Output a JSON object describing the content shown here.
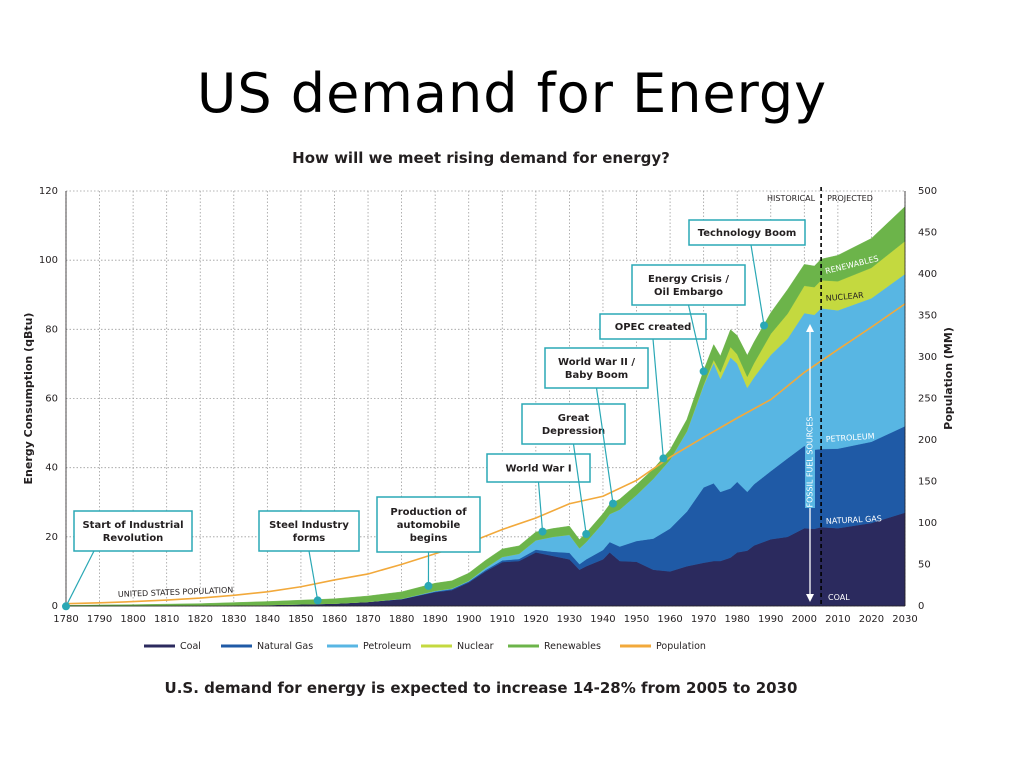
{
  "slide": {
    "title": "US demand for Energy",
    "subtitle": "How will we meet rising demand for energy?",
    "caption": "U.S. demand for energy is expected to increase 14-28% from 2005 to 2030"
  },
  "chart_data": {
    "type": "area",
    "stacked": true,
    "xlim": [
      1780,
      2030
    ],
    "ylim": [
      0,
      120
    ],
    "y2lim": [
      0,
      500
    ],
    "xlabel": "",
    "ylabel": "Energy Consumption (qBtu)",
    "y2label": "Population (MM)",
    "x_ticks": [
      "1780",
      "1790",
      "1800",
      "1810",
      "1820",
      "1830",
      "1840",
      "1850",
      "1860",
      "1870",
      "1880",
      "1890",
      "1900",
      "1910",
      "1920",
      "1930",
      "1940",
      "1950",
      "1960",
      "1970",
      "1980",
      "1990",
      "2000",
      "2010",
      "2020",
      "2030"
    ],
    "y_ticks": [
      "0",
      "20",
      "40",
      "60",
      "80",
      "100",
      "120"
    ],
    "y2_ticks": [
      "0",
      "50",
      "100",
      "150",
      "200",
      "250",
      "300",
      "350",
      "400",
      "450",
      "500"
    ],
    "grid": true,
    "legend_position": "bottom",
    "historical_label": "HISTORICAL",
    "projected_label": "PROJECTED",
    "projection_start": 2005,
    "fossil_label": "FOSSIL FUEL SOURCES",
    "population_label": "UNITED STATES POPULATION",
    "band_labels": {
      "coal": "COAL",
      "natural_gas": "NATURAL GAS",
      "petroleum": "PETROLEUM",
      "nuclear": "NUCLEAR",
      "renewables": "RENEWABLES"
    },
    "x": [
      1780,
      1800,
      1820,
      1840,
      1850,
      1860,
      1870,
      1880,
      1890,
      1895,
      1900,
      1905,
      1910,
      1915,
      1920,
      1925,
      1930,
      1933,
      1935,
      1940,
      1942,
      1945,
      1950,
      1955,
      1960,
      1965,
      1970,
      1973,
      1975,
      1978,
      1980,
      1983,
      1985,
      1990,
      1995,
      2000,
      2003,
      2005,
      2010,
      2020,
      2030
    ],
    "series": [
      {
        "name": "Coal",
        "key": "coal",
        "color": "#2b2a5e",
        "values": [
          0,
          0,
          0.1,
          0.3,
          0.5,
          0.7,
          1.2,
          2.0,
          4.0,
          4.6,
          6.8,
          10.0,
          12.7,
          13.0,
          15.5,
          14.5,
          13.5,
          10.5,
          11.5,
          13.5,
          15.5,
          13.0,
          12.8,
          10.5,
          10.0,
          11.5,
          12.5,
          13.0,
          13.0,
          14.0,
          15.5,
          16.0,
          17.5,
          19.3,
          20.0,
          22.5,
          22.3,
          22.8,
          22.5,
          24.0,
          27.0
        ]
      },
      {
        "name": "Natural Gas",
        "key": "natural_gas",
        "color": "#1f5aa6",
        "values": [
          0,
          0,
          0,
          0,
          0,
          0,
          0,
          0,
          0.2,
          0.3,
          0.3,
          0.4,
          0.5,
          0.6,
          0.8,
          1.2,
          1.9,
          1.6,
          2.0,
          2.7,
          3.0,
          4.2,
          6.0,
          9.0,
          12.4,
          15.8,
          21.8,
          22.5,
          20.0,
          20.0,
          20.4,
          17.0,
          17.7,
          19.7,
          22.7,
          23.8,
          22.9,
          22.6,
          23.0,
          23.5,
          25.0
        ]
      },
      {
        "name": "Petroleum",
        "key": "petroleum",
        "color": "#58b6e3",
        "values": [
          0,
          0,
          0,
          0,
          0,
          0,
          0,
          0.1,
          0.2,
          0.2,
          0.2,
          0.6,
          1.0,
          1.5,
          2.7,
          4.3,
          5.2,
          4.6,
          5.0,
          7.8,
          8.1,
          10.7,
          13.3,
          17.3,
          19.9,
          23.2,
          29.5,
          34.8,
          32.7,
          37.9,
          34.2,
          30.1,
          30.9,
          33.6,
          34.6,
          38.4,
          39.0,
          40.7,
          40.0,
          41.5,
          44.0
        ]
      },
      {
        "name": "Nuclear",
        "key": "nuclear",
        "color": "#c4d93f",
        "values": [
          0,
          0,
          0,
          0,
          0,
          0,
          0,
          0,
          0,
          0,
          0,
          0,
          0,
          0,
          0,
          0,
          0,
          0,
          0,
          0,
          0,
          0,
          0,
          0,
          0.01,
          0.04,
          0.24,
          0.9,
          1.9,
          3.0,
          2.7,
          3.2,
          4.1,
          6.1,
          7.2,
          7.9,
          8.0,
          8.1,
          8.4,
          8.8,
          9.5
        ]
      },
      {
        "name": "Renewables",
        "key": "renewables",
        "color": "#6cb44a",
        "values": [
          0.2,
          0.4,
          0.6,
          1.0,
          1.2,
          1.4,
          1.7,
          2.0,
          2.2,
          2.2,
          2.2,
          2.2,
          2.3,
          2.3,
          2.4,
          2.4,
          2.5,
          2.5,
          2.6,
          2.7,
          2.8,
          3.0,
          3.0,
          2.8,
          2.9,
          3.4,
          4.1,
          4.4,
          4.7,
          5.0,
          5.4,
          6.2,
          6.1,
          6.1,
          7.0,
          6.2,
          6.1,
          6.1,
          7.5,
          8.5,
          10.0
        ]
      }
    ],
    "population": {
      "name": "Population",
      "color": "#f2a93b",
      "x": [
        1780,
        1790,
        1800,
        1810,
        1820,
        1830,
        1840,
        1850,
        1860,
        1870,
        1880,
        1890,
        1900,
        1910,
        1920,
        1930,
        1940,
        1950,
        1960,
        1970,
        1980,
        1990,
        2000,
        2010,
        2020,
        2030
      ],
      "values": [
        2.8,
        3.9,
        5.3,
        7.2,
        9.6,
        12.9,
        17.1,
        23.2,
        31.4,
        38.6,
        50.2,
        63.0,
        76.2,
        92.2,
        106.0,
        123.2,
        132.2,
        151.3,
        179.3,
        203.2,
        226.5,
        248.7,
        281.4,
        309.0,
        336.0,
        364.0
      ]
    },
    "annotations": [
      {
        "text": [
          "Start of Industrial",
          "Revolution"
        ],
        "year": 1780
      },
      {
        "text": [
          "Steel Industry",
          "forms"
        ],
        "year": 1855
      },
      {
        "text": [
          "Production of",
          "automobile",
          "begins"
        ],
        "year": 1888
      },
      {
        "text": [
          "World War I"
        ],
        "year": 1922
      },
      {
        "text": [
          "Great",
          "Depression"
        ],
        "year": 1935
      },
      {
        "text": [
          "World War II /",
          "Baby Boom"
        ],
        "year": 1943
      },
      {
        "text": [
          "OPEC created"
        ],
        "year": 1958
      },
      {
        "text": [
          "Energy Crisis /",
          "Oil Embargo"
        ],
        "year": 1970
      },
      {
        "text": [
          "Technology Boom"
        ],
        "year": 1988
      }
    ]
  }
}
